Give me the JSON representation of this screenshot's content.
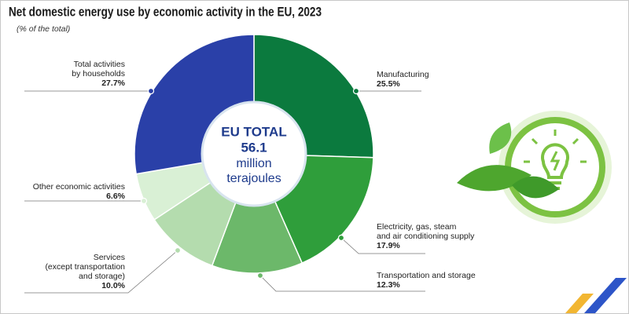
{
  "chart_data": {
    "type": "donut",
    "title": "Net domestic energy use by economic activity in the EU, 2023",
    "subtitle": "(% of the total)",
    "categories": [
      "Manufacturing",
      "Electricity, gas, steam\nand air conditioning supply",
      "Transportation and storage",
      "Services\n(except transportation\nand storage)",
      "Other economic activities",
      "Total activities\nby households"
    ],
    "values": [
      25.5,
      17.9,
      12.3,
      10.0,
      6.6,
      27.7
    ],
    "value_labels": [
      "25.5%",
      "17.9%",
      "12.3%",
      "10.0%",
      "6.6%",
      "27.7%"
    ],
    "colors": [
      "#0b7a3e",
      "#2f9e3b",
      "#6cb86a",
      "#b4dcae",
      "#d9f0d5",
      "#2a40a8"
    ],
    "center": {
      "label": "EU TOTAL",
      "value": 56.1,
      "unit_lines": [
        "million",
        "terajoules"
      ]
    }
  }
}
